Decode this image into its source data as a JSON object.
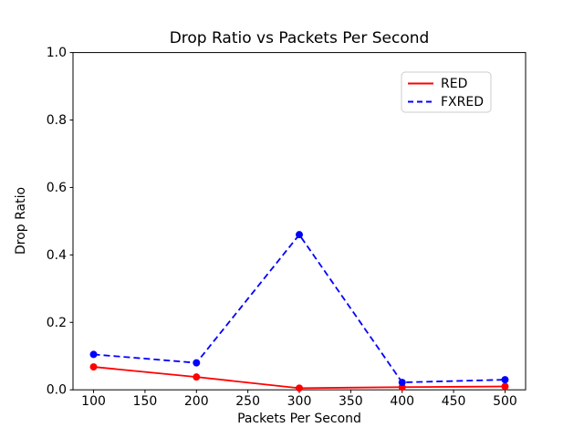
{
  "figure": {
    "background": "#ffffff",
    "text_color": "#000000",
    "spine_color": "#000000",
    "legend_border_color": "#cccccc"
  },
  "chart_data": {
    "type": "line",
    "title": "Drop Ratio vs Packets Per Second",
    "xlabel": "Packets Per Second",
    "ylabel": "Drop Ratio",
    "x": [
      100,
      200,
      300,
      400,
      500
    ],
    "series": [
      {
        "name": "RED",
        "color": "#ff0000",
        "line_style": "solid",
        "marker": "circle",
        "values": [
          0.068,
          0.038,
          0.005,
          0.008,
          0.01
        ]
      },
      {
        "name": "FXRED",
        "color": "#0000ff",
        "line_style": "dashed",
        "marker": "circle",
        "values": [
          0.105,
          0.08,
          0.46,
          0.022,
          0.03
        ]
      }
    ],
    "xticks": [
      100,
      150,
      200,
      250,
      300,
      350,
      400,
      450,
      500
    ],
    "yticks": [
      0.0,
      0.2,
      0.4,
      0.6,
      0.8,
      1.0
    ],
    "xlim": [
      80,
      520
    ],
    "ylim": [
      0.0,
      1.0
    ],
    "grid": false,
    "legend": {
      "position": "upper right",
      "entries": [
        "RED",
        "FXRED"
      ]
    }
  }
}
